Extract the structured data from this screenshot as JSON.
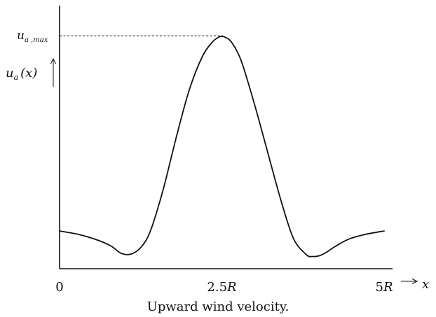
{
  "chart_data": {
    "type": "line",
    "caption": "Upward wind velocity.",
    "xlabel": "x",
    "ylabel_main": "u",
    "ylabel_sub": "a",
    "ylabel_arg": "(x)",
    "ymax_label_main": "u",
    "ymax_label_sub": "a ,max",
    "x_ticks": [
      {
        "value": 0,
        "label": "0"
      },
      {
        "value": 2.5,
        "label": "2.5R"
      },
      {
        "value": 5,
        "label": "5R"
      }
    ],
    "xlim": [
      0,
      5
    ],
    "ylim": [
      0,
      1
    ],
    "series": [
      {
        "x": [
          0,
          0.3,
          0.6,
          0.8,
          0.95,
          1.1,
          1.25,
          1.4,
          1.6,
          1.8,
          2.0,
          2.2,
          2.35,
          2.45,
          2.5,
          2.55,
          2.65,
          2.8,
          3.0,
          3.2,
          3.4,
          3.6,
          3.8,
          3.9,
          4.0,
          4.1,
          4.25,
          4.45,
          4.7,
          5.0
        ],
        "y": [
          0.16,
          0.145,
          0.12,
          0.095,
          0.065,
          0.062,
          0.09,
          0.16,
          0.34,
          0.56,
          0.76,
          0.9,
          0.96,
          0.982,
          0.985,
          0.982,
          0.96,
          0.88,
          0.7,
          0.5,
          0.3,
          0.13,
          0.06,
          0.052,
          0.055,
          0.068,
          0.095,
          0.125,
          0.145,
          0.16
        ]
      }
    ],
    "ymax_value": 0.985,
    "grid": false
  }
}
